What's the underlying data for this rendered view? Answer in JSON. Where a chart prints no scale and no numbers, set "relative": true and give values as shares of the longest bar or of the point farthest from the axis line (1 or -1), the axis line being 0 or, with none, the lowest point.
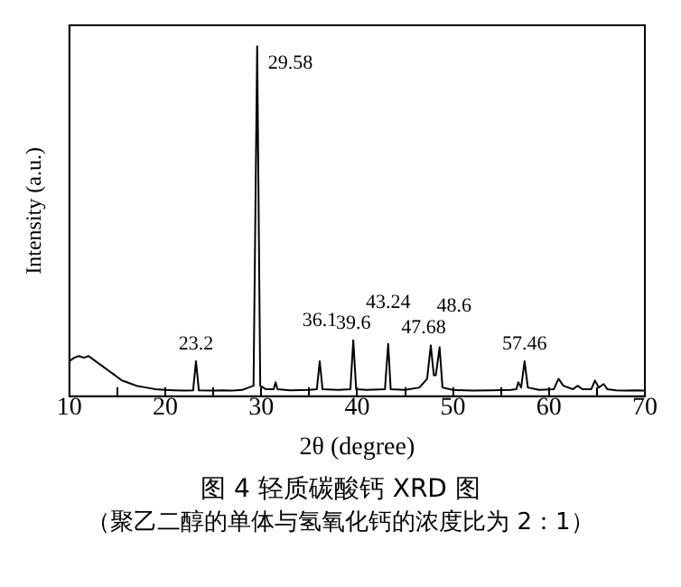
{
  "chart_data": {
    "type": "line",
    "relative": true,
    "title": "图 4 轻质碳酸钙 XRD 图",
    "subtitle": "（聚乙二醇的单体与氢氧化钙的浓度比为 2：1）",
    "xlabel": "2θ (degree)",
    "ylabel": "Intensity (a.u.)",
    "xlim": [
      10,
      70
    ],
    "xticks": [
      10,
      {
        "value": 15,
        "label": null
      },
      20,
      {
        "value": 25,
        "label": null
      },
      30,
      {
        "value": 35,
        "label": null
      },
      40,
      {
        "value": 45,
        "label": null
      },
      50,
      {
        "value": 55,
        "label": null
      },
      60,
      {
        "value": 65,
        "label": null
      },
      70
    ],
    "grid": false,
    "legend": false,
    "marker": "none",
    "line_style": "solid",
    "series": [
      {
        "color": "#000000",
        "x": [
          10,
          10.5,
          11,
          11.5,
          12,
          12.5,
          13,
          13.5,
          14,
          14.5,
          15,
          15.5,
          16,
          16.5,
          17,
          18,
          19,
          20,
          21,
          22,
          22.9,
          23.2,
          23.5,
          25,
          26,
          27,
          28,
          29.2,
          29.58,
          29.9,
          30.5,
          31.3,
          31.5,
          31.7,
          33,
          35,
          35.8,
          36.1,
          36.4,
          38,
          39.3,
          39.6,
          39.9,
          41,
          42.9,
          43.24,
          43.5,
          45,
          46.5,
          47.3,
          47.68,
          48.0,
          48.2,
          48.6,
          48.9,
          50,
          52,
          54,
          56,
          56.6,
          56.8,
          57.1,
          57.46,
          57.8,
          59,
          60.5,
          61,
          61.5,
          62.5,
          63,
          63.5,
          64.4,
          64.8,
          65.2,
          65.7,
          66.1,
          67,
          68,
          69,
          70
        ],
        "values": [
          0.1,
          0.11,
          0.115,
          0.11,
          0.115,
          0.105,
          0.095,
          0.085,
          0.075,
          0.065,
          0.055,
          0.045,
          0.04,
          0.035,
          0.03,
          0.025,
          0.02,
          0.018,
          0.017,
          0.016,
          0.017,
          0.1,
          0.017,
          0.016,
          0.017,
          0.016,
          0.018,
          0.03,
          1.0,
          0.03,
          0.02,
          0.02,
          0.04,
          0.02,
          0.017,
          0.018,
          0.02,
          0.1,
          0.02,
          0.018,
          0.02,
          0.16,
          0.02,
          0.018,
          0.02,
          0.15,
          0.02,
          0.018,
          0.025,
          0.05,
          0.145,
          0.06,
          0.06,
          0.14,
          0.025,
          0.018,
          0.016,
          0.017,
          0.018,
          0.02,
          0.04,
          0.025,
          0.1,
          0.025,
          0.018,
          0.02,
          0.05,
          0.03,
          0.02,
          0.03,
          0.02,
          0.02,
          0.045,
          0.025,
          0.035,
          0.02,
          0.017,
          0.016,
          0.017,
          0.016
        ]
      }
    ],
    "annotations": [
      {
        "text": "23.2",
        "x": 23.2,
        "y": 0.1
      },
      {
        "text": "29.58",
        "x": 29.58,
        "y": 1.0
      },
      {
        "text": "36.1",
        "x": 36.1,
        "y": 0.1
      },
      {
        "text": "39.6",
        "x": 39.6,
        "y": 0.16
      },
      {
        "text": "43.24",
        "x": 43.24,
        "y": 0.15
      },
      {
        "text": "47.68",
        "x": 47.68,
        "y": 0.145
      },
      {
        "text": "48.6",
        "x": 48.6,
        "y": 0.14
      },
      {
        "text": "57.46",
        "x": 57.46,
        "y": 0.1
      }
    ]
  }
}
